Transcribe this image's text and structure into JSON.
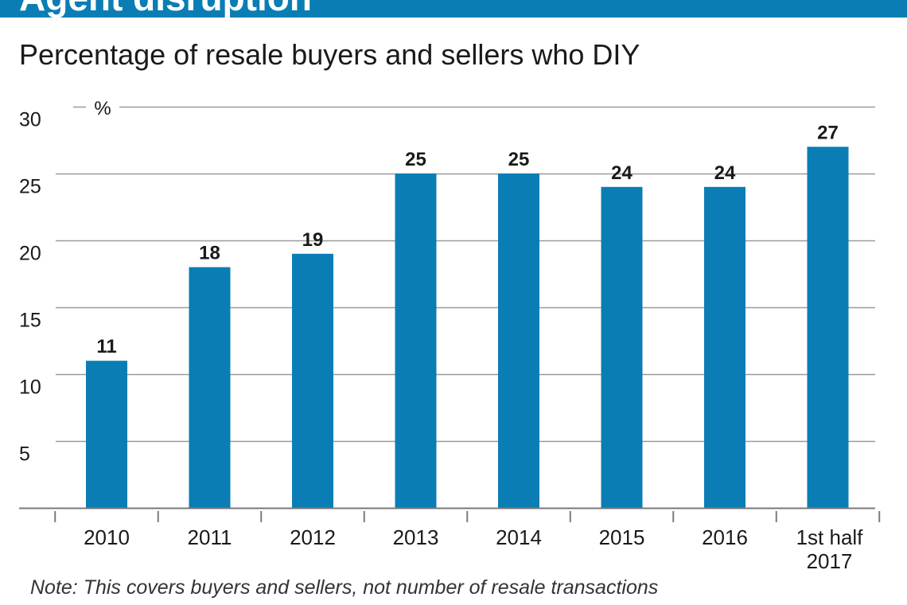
{
  "header": {
    "title": "Agent disruption"
  },
  "colors": {
    "accent": "#0a7db5",
    "bar": "#0a7db5",
    "grid": "#9a9a9a",
    "text": "#1a1a1a"
  },
  "chart_data": {
    "type": "bar",
    "title": "Agent disruption",
    "subtitle": "Percentage of resale buyers and sellers who DIY",
    "ylabel": "%",
    "xlabel": "",
    "categories": [
      "2010",
      "2011",
      "2012",
      "2013",
      "2014",
      "2015",
      "2016",
      "1st half 2017"
    ],
    "category_lines": [
      [
        "2010"
      ],
      [
        "2011"
      ],
      [
        "2012"
      ],
      [
        "2013"
      ],
      [
        "2014"
      ],
      [
        "2015"
      ],
      [
        "2016"
      ],
      [
        "1st half",
        "2017"
      ]
    ],
    "values": [
      11,
      18,
      19,
      25,
      25,
      24,
      24,
      27
    ],
    "ylim": [
      0,
      30
    ],
    "yticks": [
      5,
      10,
      15,
      20,
      25,
      30
    ],
    "grid": true,
    "note": "Note: This covers buyers and sellers, not number of resale transactions"
  }
}
